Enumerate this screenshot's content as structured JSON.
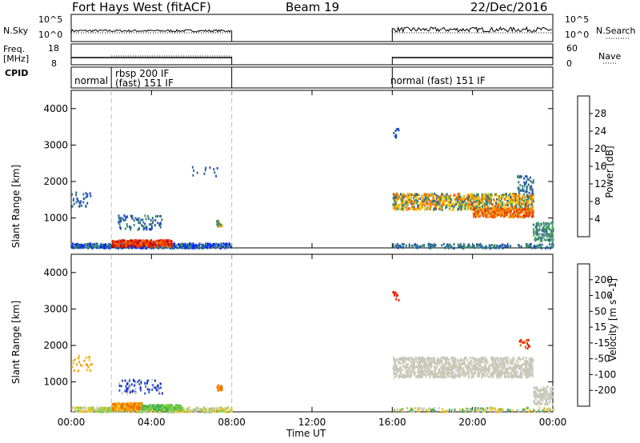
{
  "header": {
    "title": "Fort Hays West (fitACF)",
    "beam": "Beam 19",
    "date": "22/Dec/2016"
  },
  "top_panels": {
    "nsky_label": "N.Sky",
    "nsearch_label": "N.Search",
    "noise_ticks_left": [
      "10^5",
      "10^0"
    ],
    "noise_ticks_right": [
      "10^5",
      "10^0"
    ],
    "freq_label_1": "Freq.",
    "freq_label_2": "[MHz]",
    "freq_ticks": [
      "18",
      "8"
    ],
    "nave_label": "Nave",
    "nave_ticks": [
      "60",
      "0"
    ],
    "cpid_label": "CPID",
    "cpid_segments": [
      {
        "start": 0.0,
        "text": "normal"
      },
      {
        "start": 2.0,
        "text": "rbsp 200 IF"
      },
      {
        "start": 2.0,
        "text": "(fast) 151 IF"
      },
      {
        "start": 16.0,
        "text": "normal (fast) 151 IF"
      }
    ]
  },
  "chart_data": [
    {
      "type": "heatmap",
      "name": "power",
      "ylabel": "Slant Range [km]",
      "ylim": [
        180,
        4500
      ],
      "yticks": [
        "4000",
        "3000",
        "2000",
        "1000"
      ],
      "ytick_values": [
        4000,
        3000,
        2000,
        1000
      ],
      "colorbar_label": "Power [dB]",
      "colorbar_ticks": [
        "28",
        "24",
        "20",
        "16",
        "12",
        "8",
        "4"
      ],
      "colorbar_colors": [
        "#0022ff",
        "#1f4fbf",
        "#2f6a8c",
        "#3a8f6a",
        "#4fa85a",
        "#9ac13a",
        "#f5d000",
        "#f5a300",
        "#f36a00",
        "#e83000",
        "#d00000"
      ],
      "colorbar_range": [
        0,
        30
      ],
      "data_intervals_hours": [
        [
          0.0,
          8.0
        ],
        [
          16.0,
          24.0
        ]
      ]
    },
    {
      "type": "heatmap",
      "name": "velocity",
      "ylabel": "Slant Range [km]",
      "ylim": [
        180,
        4500
      ],
      "yticks": [
        "4000",
        "3000",
        "2000",
        "1000"
      ],
      "ytick_values": [
        4000,
        3000,
        2000,
        1000
      ],
      "colorbar_label": "Velocity [m s^-1]",
      "colorbar_ticks": [
        "200",
        "100",
        "50",
        "15",
        "-15",
        "-50",
        "-100",
        "-200"
      ],
      "colorbar_colors": [
        "#1a28c8",
        "#2a5bd8",
        "#2f8a72",
        "#3fb050",
        "#7ed040",
        "#c8c8b8",
        "#f5c020",
        "#f59a00",
        "#f06a00",
        "#e82000"
      ],
      "xlabel": "Time UT",
      "xticks": [
        "00:00",
        "04:00",
        "08:00",
        "12:00",
        "16:00",
        "20:00",
        "00:00"
      ],
      "xtick_hours": [
        0,
        4,
        8,
        12,
        16,
        20,
        24
      ],
      "xlim": [
        0,
        24
      ]
    }
  ]
}
